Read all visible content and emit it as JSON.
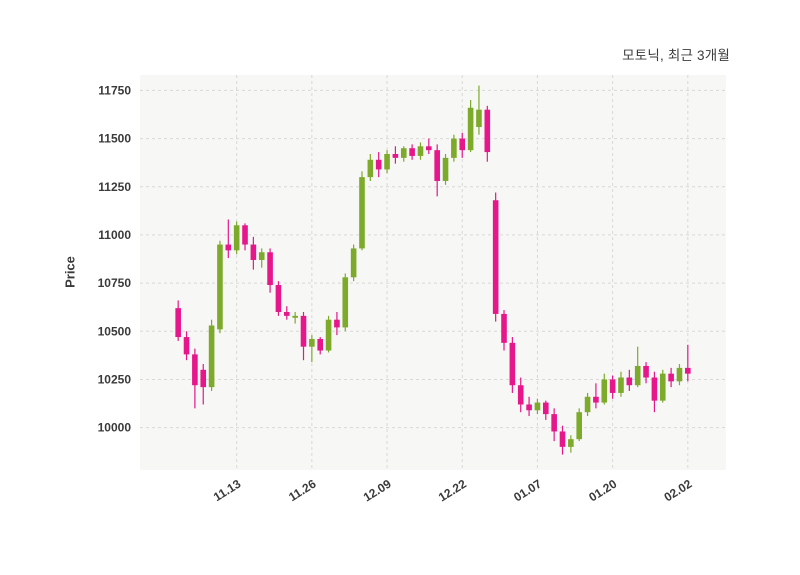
{
  "chart": {
    "title": "모토닉, 최근 3개월",
    "ylabel": "Price"
  },
  "chart_data": {
    "type": "candlestick",
    "title": "모토닉, 최근 3개월",
    "xlabel": "",
    "ylabel": "Price",
    "ylim": [
      9780,
      11830
    ],
    "yticks": [
      10000,
      10250,
      10500,
      10750,
      11000,
      11250,
      11500,
      11750
    ],
    "xticks": [
      {
        "index": 7,
        "label": "11.13"
      },
      {
        "index": 16,
        "label": "11.26"
      },
      {
        "index": 25,
        "label": "12.09"
      },
      {
        "index": 34,
        "label": "12.22"
      },
      {
        "index": 43,
        "label": "01.07"
      },
      {
        "index": 52,
        "label": "01.20"
      },
      {
        "index": 61,
        "label": "02.02"
      }
    ],
    "grid": "dashed",
    "legend": "none",
    "colors": {
      "up": "#7daa2b",
      "down": "#e5178a",
      "grid": "#d8d8d8",
      "plot_bg": "#f7f7f5",
      "text": "#3a3a3a"
    },
    "candles_format": [
      "open",
      "high",
      "low",
      "close"
    ],
    "candles": [
      [
        10620,
        10660,
        10450,
        10470
      ],
      [
        10470,
        10500,
        10350,
        10380
      ],
      [
        10380,
        10410,
        10100,
        10220
      ],
      [
        10300,
        10330,
        10120,
        10210
      ],
      [
        10210,
        10560,
        10190,
        10530
      ],
      [
        10510,
        10970,
        10490,
        10950
      ],
      [
        10950,
        11080,
        10880,
        10920
      ],
      [
        10920,
        11070,
        10900,
        11050
      ],
      [
        11050,
        11060,
        10920,
        10950
      ],
      [
        10950,
        10990,
        10820,
        10870
      ],
      [
        10870,
        10930,
        10830,
        10910
      ],
      [
        10910,
        10930,
        10700,
        10740
      ],
      [
        10740,
        10760,
        10580,
        10600
      ],
      [
        10600,
        10630,
        10560,
        10580
      ],
      [
        10570,
        10600,
        10540,
        10580
      ],
      [
        10580,
        10600,
        10350,
        10420
      ],
      [
        10420,
        10480,
        10340,
        10460
      ],
      [
        10460,
        10470,
        10380,
        10400
      ],
      [
        10400,
        10580,
        10390,
        10560
      ],
      [
        10560,
        10600,
        10480,
        10520
      ],
      [
        10520,
        10800,
        10500,
        10780
      ],
      [
        10780,
        10950,
        10760,
        10930
      ],
      [
        10930,
        11330,
        10920,
        11300
      ],
      [
        11300,
        11420,
        11280,
        11390
      ],
      [
        11390,
        11430,
        11300,
        11340
      ],
      [
        11340,
        11440,
        11320,
        11420
      ],
      [
        11420,
        11460,
        11370,
        11400
      ],
      [
        11400,
        11460,
        11380,
        11450
      ],
      [
        11450,
        11470,
        11390,
        11410
      ],
      [
        11410,
        11480,
        11390,
        11460
      ],
      [
        11460,
        11500,
        11420,
        11440
      ],
      [
        11440,
        11470,
        11200,
        11280
      ],
      [
        11280,
        11420,
        11260,
        11400
      ],
      [
        11400,
        11520,
        11380,
        11500
      ],
      [
        11500,
        11530,
        11400,
        11440
      ],
      [
        11440,
        11700,
        11430,
        11660
      ],
      [
        11560,
        11775,
        11520,
        11650
      ],
      [
        11650,
        11670,
        11380,
        11430
      ],
      [
        11180,
        11220,
        10550,
        10590
      ],
      [
        10590,
        10610,
        10400,
        10440
      ],
      [
        10440,
        10470,
        10180,
        10220
      ],
      [
        10220,
        10260,
        10080,
        10120
      ],
      [
        10120,
        10160,
        10060,
        10090
      ],
      [
        10090,
        10150,
        10070,
        10130
      ],
      [
        10130,
        10140,
        10040,
        10070
      ],
      [
        10070,
        10100,
        9930,
        9980
      ],
      [
        9980,
        10010,
        9860,
        9900
      ],
      [
        9900,
        9960,
        9870,
        9940
      ],
      [
        9940,
        10100,
        9930,
        10080
      ],
      [
        10080,
        10180,
        10060,
        10160
      ],
      [
        10160,
        10230,
        10100,
        10130
      ],
      [
        10130,
        10280,
        10120,
        10250
      ],
      [
        10250,
        10270,
        10150,
        10180
      ],
      [
        10180,
        10290,
        10160,
        10260
      ],
      [
        10260,
        10300,
        10190,
        10220
      ],
      [
        10220,
        10420,
        10210,
        10320
      ],
      [
        10320,
        10340,
        10230,
        10260
      ],
      [
        10260,
        10290,
        10080,
        10140
      ],
      [
        10140,
        10300,
        10130,
        10280
      ],
      [
        10280,
        10310,
        10210,
        10240
      ],
      [
        10240,
        10330,
        10220,
        10310
      ],
      [
        10310,
        10430,
        10240,
        10280
      ]
    ]
  }
}
